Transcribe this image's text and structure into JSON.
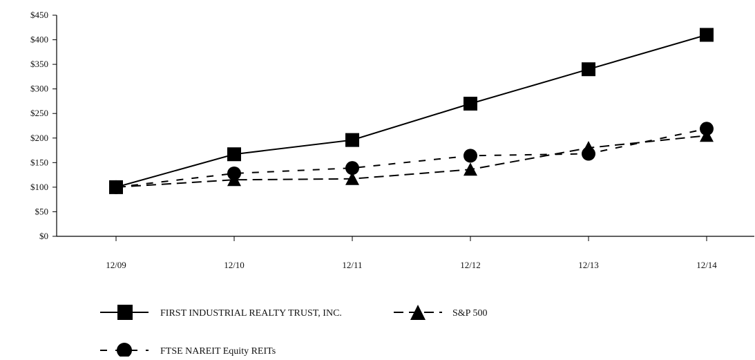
{
  "chart_data": {
    "type": "line",
    "title": "",
    "xlabel": "",
    "ylabel": "",
    "categories": [
      "12/09",
      "12/10",
      "12/11",
      "12/12",
      "12/13",
      "12/14"
    ],
    "y_ticks": [
      "$0",
      "$50",
      "$100",
      "$150",
      "$200",
      "$250",
      "$300",
      "$350",
      "$400",
      "$450"
    ],
    "ylim": [
      0,
      450
    ],
    "grid": false,
    "legend_position": "bottom-left",
    "series": [
      {
        "name": "FIRST INDUSTRIAL REALTY TRUST, INC.",
        "values": [
          100,
          167,
          196,
          270,
          340,
          410
        ],
        "marker": "square",
        "line_style": "solid",
        "color": "#000000"
      },
      {
        "name": "S&P 500",
        "values": [
          100,
          115,
          117,
          136,
          180,
          205
        ],
        "marker": "triangle",
        "line_style": "long-dash",
        "color": "#000000"
      },
      {
        "name": "FTSE NAREIT Equity REITs",
        "values": [
          100,
          128,
          139,
          164,
          168,
          219
        ],
        "marker": "circle",
        "line_style": "short-dash",
        "color": "#000000"
      }
    ]
  }
}
